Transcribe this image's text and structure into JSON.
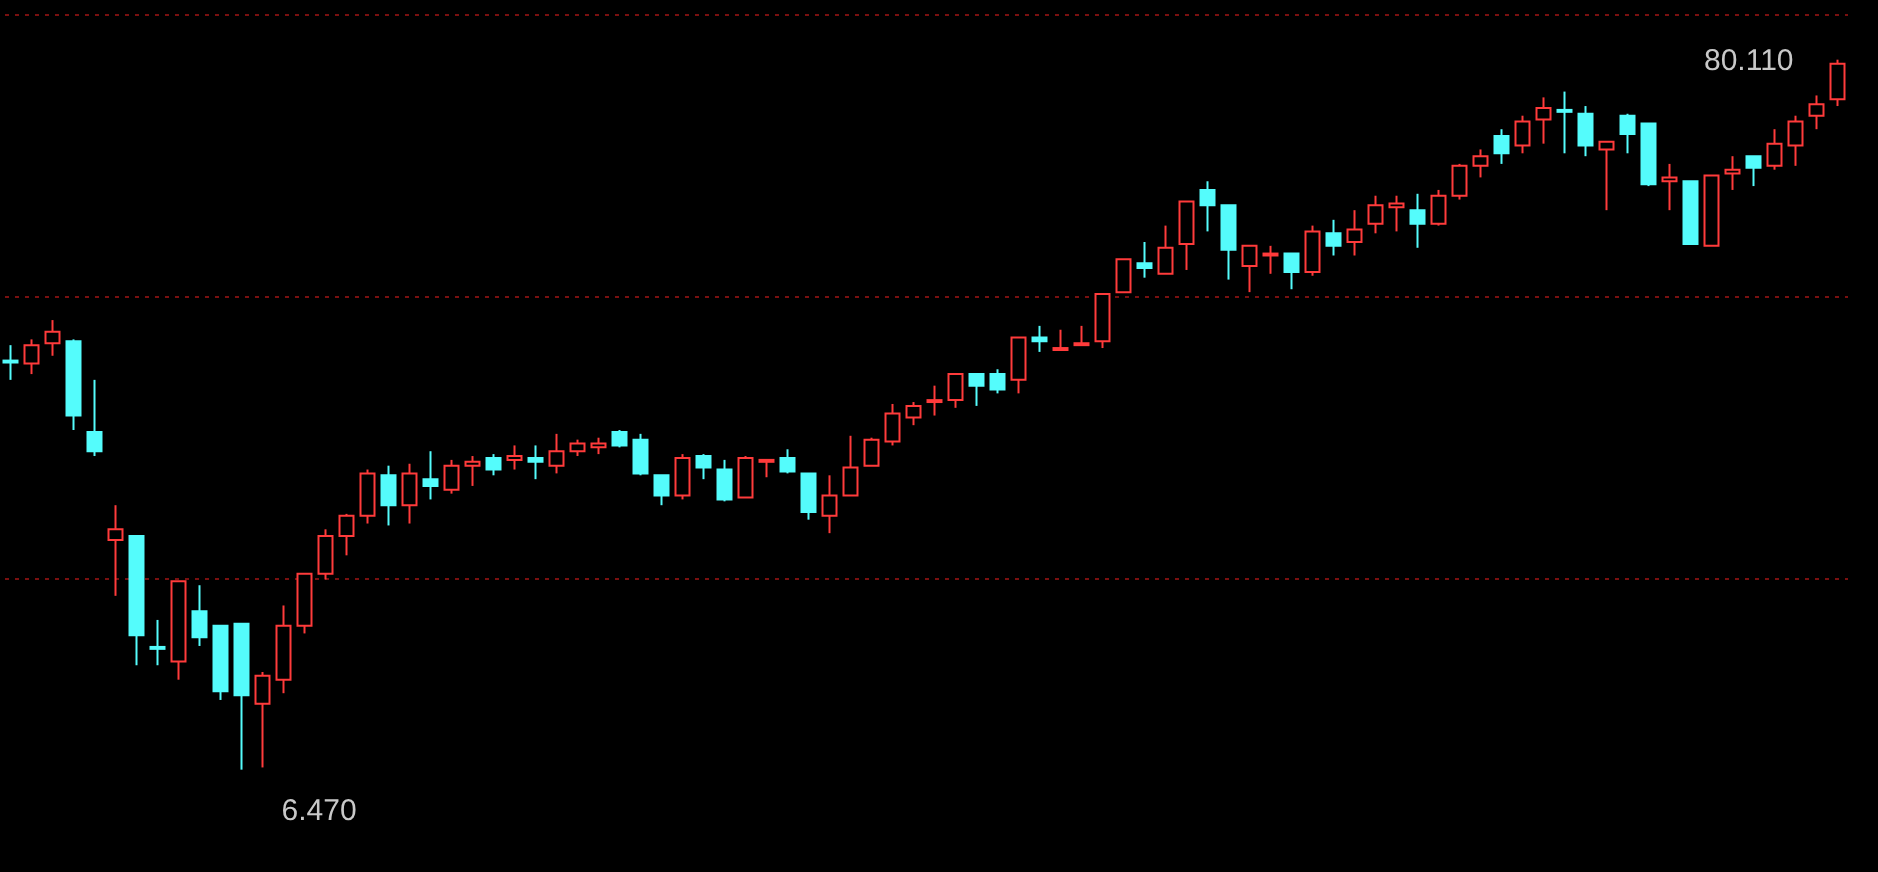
{
  "chart_data": {
    "type": "candlestick",
    "categories": [
      null,
      null,
      null,
      null,
      null,
      null,
      null,
      null,
      null,
      null,
      null,
      null,
      null,
      null,
      null,
      null,
      null,
      null,
      null,
      null,
      null,
      null,
      null,
      null,
      null,
      null,
      null,
      null,
      null,
      null,
      null,
      null,
      null,
      null,
      null,
      null,
      null,
      null,
      null,
      null,
      null,
      null,
      null,
      null,
      null,
      null,
      null,
      null,
      null,
      null,
      null,
      null,
      null,
      null,
      null,
      null,
      null,
      null,
      null,
      null,
      null,
      null,
      null,
      null,
      null,
      null,
      null,
      null,
      null,
      null,
      null,
      null,
      null,
      null,
      null,
      null,
      null,
      null,
      null,
      null,
      null,
      null,
      null,
      null,
      null,
      null,
      null,
      null
    ],
    "ohlc": [
      [
        48.9,
        50.5,
        46.9,
        48.7
      ],
      [
        48.6,
        51.1,
        47.5,
        50.5
      ],
      [
        50.7,
        53.1,
        49.4,
        51.9
      ],
      [
        50.9,
        51.1,
        41.7,
        43.2
      ],
      [
        41.5,
        46.9,
        39.0,
        39.5
      ],
      [
        30.3,
        33.9,
        24.5,
        31.4
      ],
      [
        30.7,
        30.7,
        17.3,
        20.4
      ],
      [
        19.2,
        22.0,
        17.3,
        19.0
      ],
      [
        17.7,
        26.0,
        15.8,
        26.0
      ],
      [
        22.9,
        25.6,
        19.3,
        20.2
      ],
      [
        21.4,
        21.4,
        13.7,
        14.6
      ],
      [
        21.6,
        21.6,
        6.47,
        14.2
      ],
      [
        13.3,
        16.6,
        6.7,
        16.2
      ],
      [
        15.8,
        23.5,
        14.4,
        21.4
      ],
      [
        21.4,
        26.8,
        20.6,
        26.8
      ],
      [
        26.8,
        31.4,
        26.2,
        30.7
      ],
      [
        30.7,
        33.0,
        28.7,
        32.8
      ],
      [
        32.8,
        37.6,
        32.0,
        37.2
      ],
      [
        37.0,
        38.0,
        31.8,
        33.9
      ],
      [
        33.9,
        38.2,
        32.0,
        37.2
      ],
      [
        36.6,
        39.5,
        34.5,
        35.9
      ],
      [
        35.5,
        38.6,
        35.1,
        38.0
      ],
      [
        38.0,
        39.0,
        35.9,
        38.4
      ],
      [
        38.8,
        39.2,
        37.0,
        37.6
      ],
      [
        38.6,
        40.1,
        37.6,
        39.0
      ],
      [
        38.8,
        40.1,
        36.6,
        38.4
      ],
      [
        38.0,
        41.3,
        37.2,
        39.5
      ],
      [
        39.5,
        40.7,
        39.0,
        40.3
      ],
      [
        39.9,
        40.9,
        39.2,
        40.3
      ],
      [
        41.5,
        41.7,
        39.9,
        40.1
      ],
      [
        40.7,
        41.3,
        37.0,
        37.2
      ],
      [
        37.0,
        37.0,
        33.9,
        34.9
      ],
      [
        34.9,
        39.2,
        34.5,
        38.8
      ],
      [
        39.0,
        39.2,
        36.6,
        37.8
      ],
      [
        37.6,
        38.6,
        34.3,
        34.5
      ],
      [
        34.7,
        39.0,
        34.7,
        38.8
      ],
      [
        38.4,
        38.6,
        36.8,
        38.6
      ],
      [
        38.8,
        39.7,
        37.2,
        37.4
      ],
      [
        37.2,
        37.2,
        32.4,
        33.2
      ],
      [
        32.8,
        37.0,
        31.0,
        34.9
      ],
      [
        34.9,
        41.1,
        34.9,
        37.8
      ],
      [
        38.0,
        40.9,
        38.0,
        40.7
      ],
      [
        40.5,
        44.4,
        40.1,
        43.4
      ],
      [
        43.0,
        44.6,
        42.2,
        44.2
      ],
      [
        44.6,
        46.3,
        43.2,
        44.8
      ],
      [
        44.8,
        47.5,
        44.0,
        47.5
      ],
      [
        47.5,
        47.5,
        44.2,
        46.3
      ],
      [
        47.5,
        48.0,
        45.5,
        45.9
      ],
      [
        46.9,
        51.3,
        45.5,
        51.3
      ],
      [
        51.3,
        52.5,
        49.8,
        50.9
      ],
      [
        50.0,
        52.1,
        50.0,
        50.2
      ],
      [
        50.5,
        52.5,
        50.5,
        50.7
      ],
      [
        50.9,
        55.8,
        50.2,
        55.8
      ],
      [
        56.0,
        59.4,
        56.0,
        59.4
      ],
      [
        59.0,
        61.2,
        57.5,
        58.5
      ],
      [
        57.9,
        62.9,
        57.9,
        60.6
      ],
      [
        61.0,
        65.4,
        58.3,
        65.4
      ],
      [
        66.6,
        67.5,
        62.3,
        65.0
      ],
      [
        65.0,
        65.0,
        57.3,
        60.4
      ],
      [
        58.7,
        60.8,
        56.0,
        60.8
      ],
      [
        59.8,
        60.8,
        57.9,
        60.0
      ],
      [
        60.0,
        60.0,
        56.3,
        58.1
      ],
      [
        58.1,
        62.9,
        57.7,
        62.3
      ],
      [
        62.1,
        63.5,
        59.8,
        60.8
      ],
      [
        61.2,
        64.5,
        59.8,
        62.5
      ],
      [
        63.1,
        66.0,
        62.1,
        65.0
      ],
      [
        64.8,
        66.0,
        62.3,
        65.2
      ],
      [
        64.5,
        66.2,
        60.6,
        63.1
      ],
      [
        63.1,
        66.6,
        62.9,
        66.0
      ],
      [
        66.0,
        69.3,
        65.6,
        69.1
      ],
      [
        69.1,
        70.8,
        67.9,
        70.1
      ],
      [
        72.2,
        72.9,
        69.3,
        70.4
      ],
      [
        71.2,
        74.3,
        70.4,
        73.7
      ],
      [
        73.9,
        76.2,
        71.4,
        75.1
      ],
      [
        74.9,
        76.8,
        70.4,
        74.7
      ],
      [
        74.5,
        75.3,
        70.1,
        71.2
      ],
      [
        70.8,
        71.6,
        64.5,
        71.6
      ],
      [
        74.3,
        74.5,
        70.4,
        72.4
      ],
      [
        73.5,
        73.5,
        67.0,
        67.2
      ],
      [
        67.5,
        69.3,
        64.5,
        67.9
      ],
      [
        67.5,
        67.5,
        61.0,
        61.0
      ],
      [
        60.8,
        68.1,
        60.8,
        68.1
      ],
      [
        68.3,
        70.1,
        66.6,
        68.7
      ],
      [
        70.1,
        70.1,
        67.0,
        68.9
      ],
      [
        69.1,
        72.9,
        68.7,
        71.4
      ],
      [
        71.2,
        74.3,
        69.1,
        73.7
      ],
      [
        74.3,
        76.4,
        72.9,
        75.5
      ],
      [
        76.0,
        80.11,
        75.3,
        79.7
      ]
    ],
    "colors": [
      "#54fcfc",
      "#ff3b3b",
      "#ff3b3b",
      "#54fcfc",
      "#54fcfc",
      "#ff3b3b",
      "#54fcfc",
      "#54fcfc",
      "#ff3b3b",
      "#54fcfc",
      "#54fcfc",
      "#54fcfc",
      "#ff3b3b",
      "#ff3b3b",
      "#ff3b3b",
      "#ff3b3b",
      "#ff3b3b",
      "#ff3b3b",
      "#54fcfc",
      "#ff3b3b",
      "#54fcfc",
      "#ff3b3b",
      "#ff3b3b",
      "#54fcfc",
      "#ff3b3b",
      "#54fcfc",
      "#ff3b3b",
      "#ff3b3b",
      "#ff3b3b",
      "#54fcfc",
      "#54fcfc",
      "#54fcfc",
      "#ff3b3b",
      "#54fcfc",
      "#54fcfc",
      "#ff3b3b",
      "#ff3b3b",
      "#54fcfc",
      "#54fcfc",
      "#ff3b3b",
      "#ff3b3b",
      "#ff3b3b",
      "#ff3b3b",
      "#ff3b3b",
      "#ff3b3b",
      "#ff3b3b",
      "#54fcfc",
      "#54fcfc",
      "#ff3b3b",
      "#54fcfc",
      "#ff3b3b",
      "#ff3b3b",
      "#ff3b3b",
      "#ff3b3b",
      "#54fcfc",
      "#ff3b3b",
      "#ff3b3b",
      "#54fcfc",
      "#54fcfc",
      "#ff3b3b",
      "#ff3b3b",
      "#54fcfc",
      "#ff3b3b",
      "#54fcfc",
      "#ff3b3b",
      "#ff3b3b",
      "#ff3b3b",
      "#54fcfc",
      "#ff3b3b",
      "#ff3b3b",
      "#ff3b3b",
      "#54fcfc",
      "#ff3b3b",
      "#ff3b3b",
      "#54fcfc",
      "#54fcfc",
      "#ff3b3b",
      "#54fcfc",
      "#54fcfc",
      "#ff3b3b",
      "#54fcfc",
      "#ff3b3b",
      "#ff3b3b",
      "#54fcfc",
      "#ff3b3b",
      "#ff3b3b",
      "#ff3b3b",
      "#ff3b3b"
    ],
    "ylim": [
      -2.9,
      86.3
    ],
    "yticks": [
      {
        "value": 26.4,
        "label": null
      },
      {
        "value": 55.6,
        "label": null
      },
      {
        "value": 84.8,
        "label": null
      }
    ],
    "grid": "y",
    "annotations": [
      "80.110",
      "6.470"
    ]
  }
}
